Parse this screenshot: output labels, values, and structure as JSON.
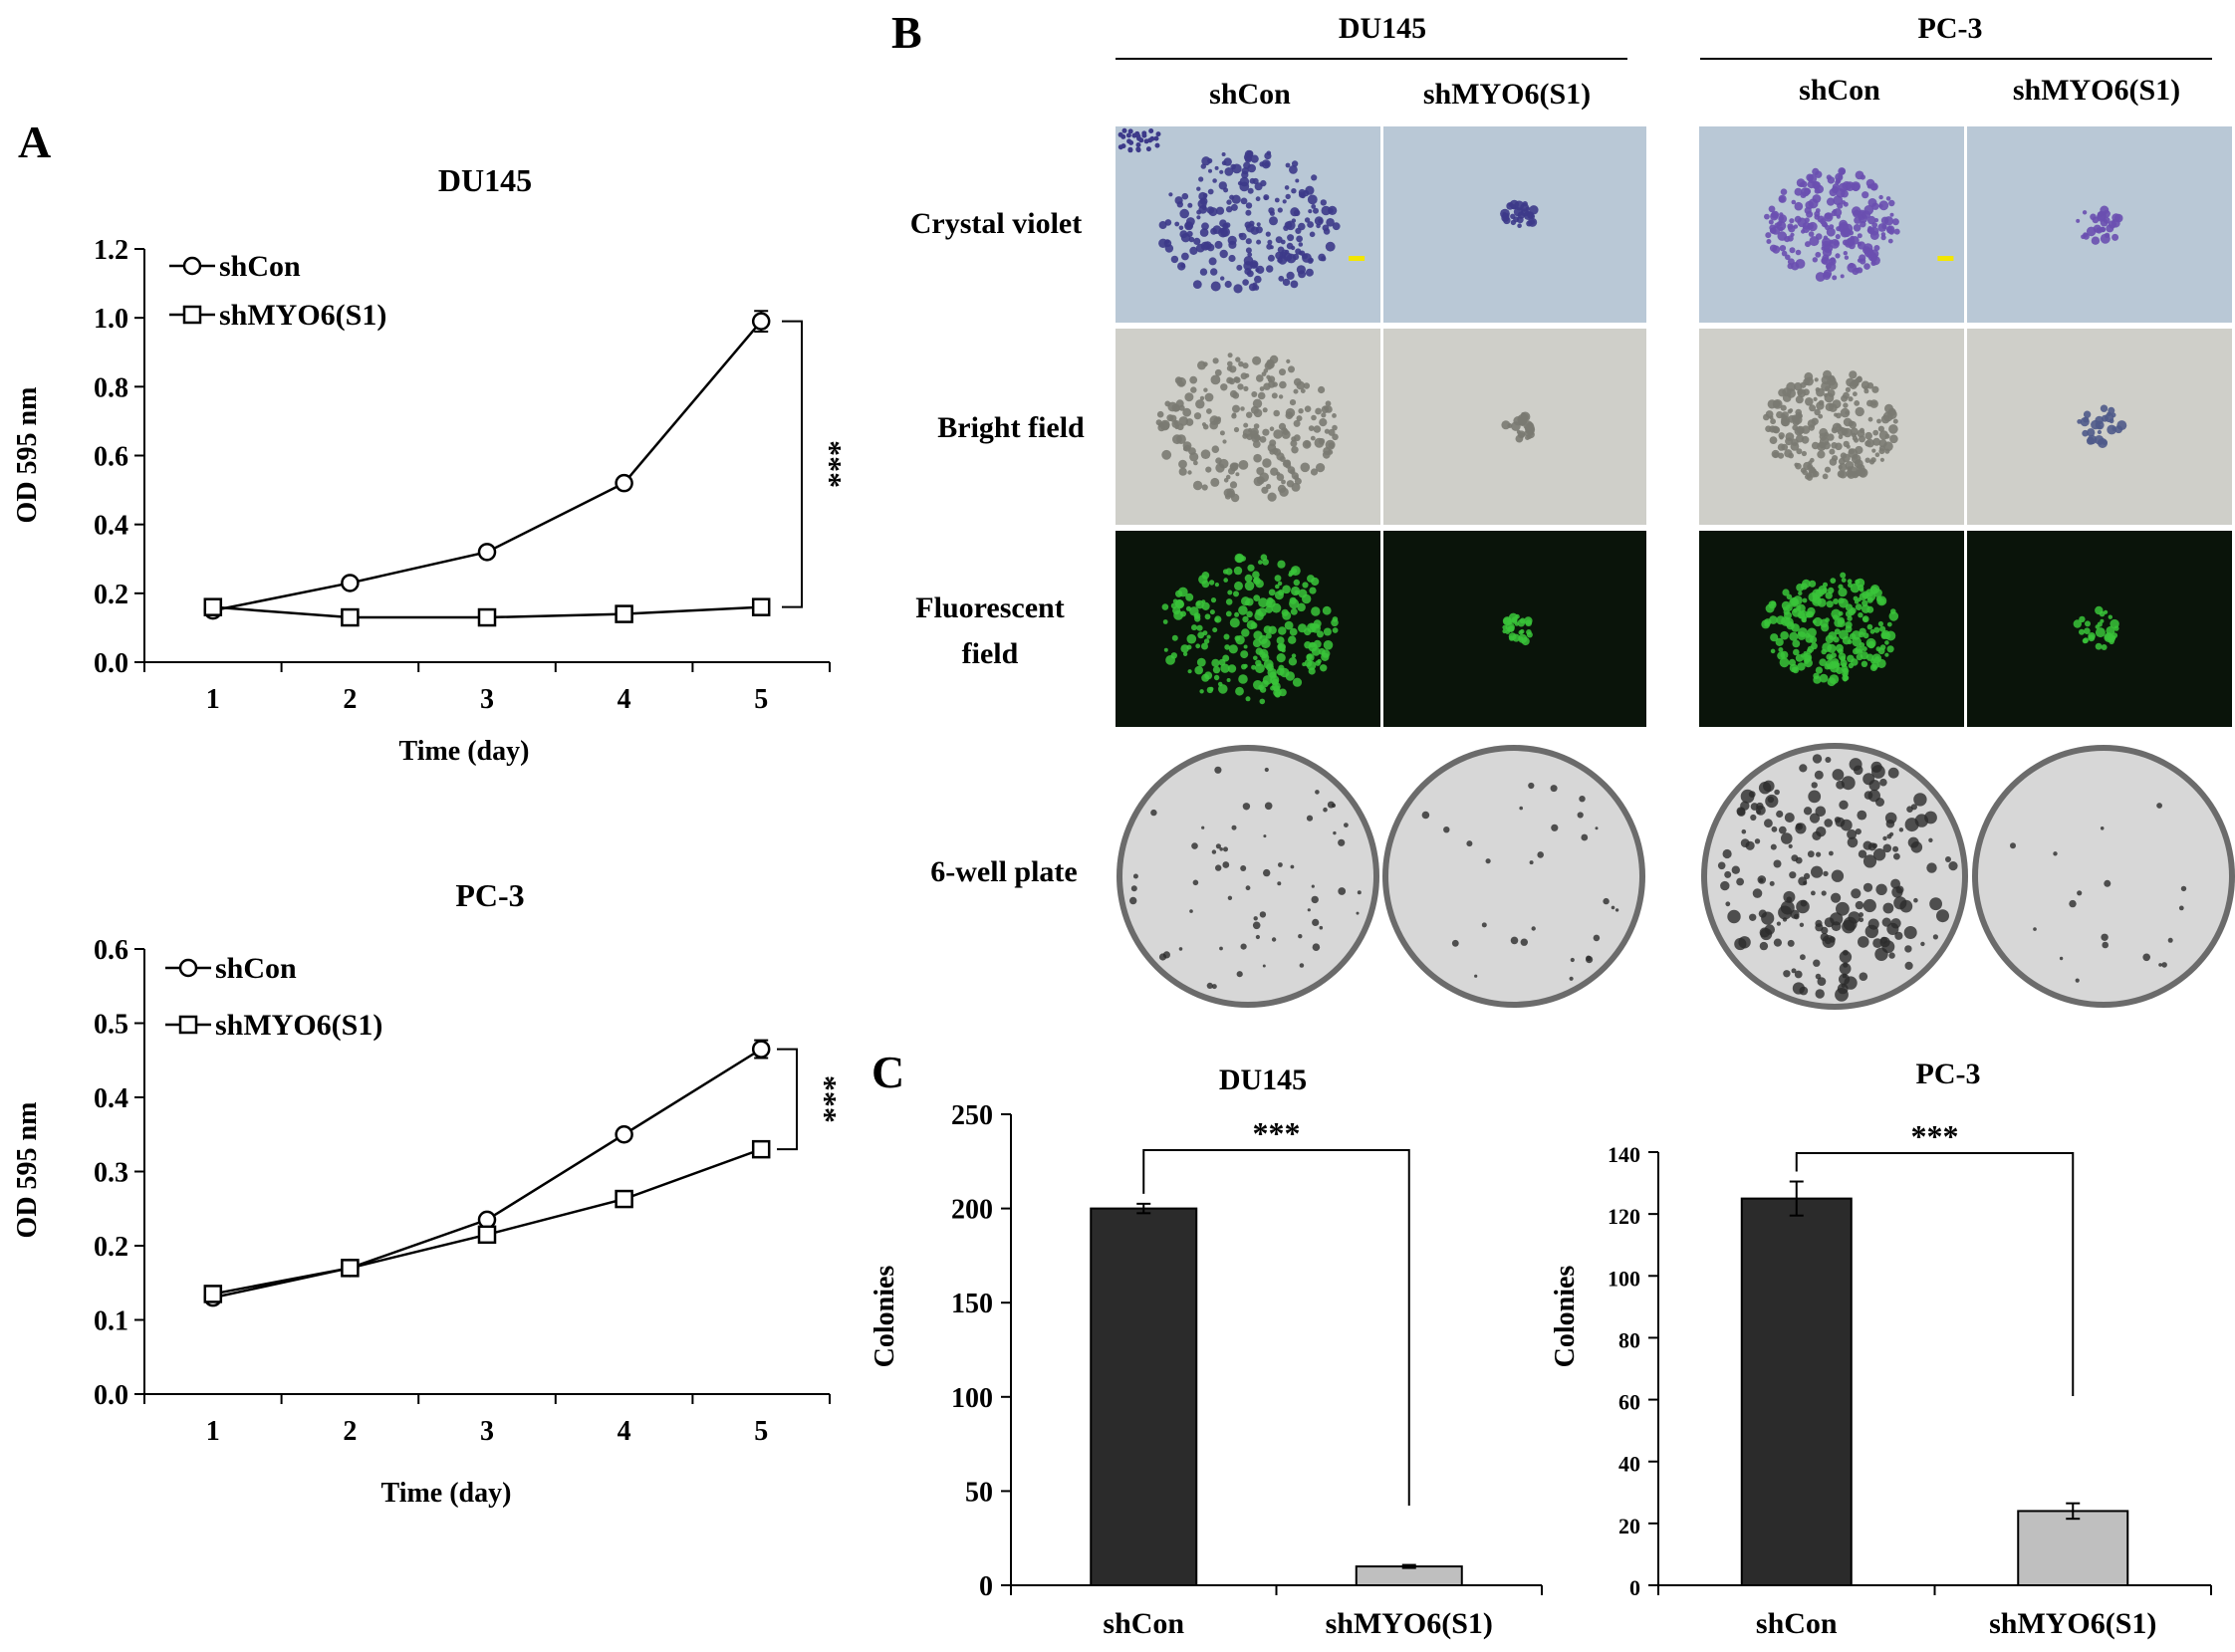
{
  "figure": {
    "panel_letters": [
      "A",
      "B",
      "C"
    ],
    "palette": {
      "axis": "#000000",
      "bar_shcon": "#2b2b2b",
      "bar_shmyo6": "#bfbfbf",
      "crystal_bg": "#b9c8d6",
      "crystal_stain": "#3d3a8a",
      "crystal_stain_pc3": "#6a4fb0",
      "bright_bg": "#cfcfc9",
      "fluor_bg": "#0a140a",
      "fluor_green": "#39c43a",
      "plate_bg": "#d7d7d7",
      "scale_bar": "#f3e600"
    }
  },
  "panelA": {
    "top": {
      "title": "DU145",
      "ylabel": "OD 595 nm",
      "xlabel": "Time (day)",
      "significance": "***"
    },
    "bottom": {
      "title": "PC-3",
      "ylabel": "OD 595 nm",
      "xlabel": "Time (day)",
      "significance": "***"
    }
  },
  "panelB": {
    "groups": [
      {
        "label": "DU145",
        "columns": [
          "shCon",
          "shMYO6(S1)"
        ]
      },
      {
        "label": "PC-3",
        "columns": [
          "shCon",
          "shMYO6(S1)"
        ]
      }
    ],
    "rows": [
      "Crystal violet",
      "Bright field",
      "Fluorescent\nfield",
      "6-well plate"
    ],
    "row_lines": [
      [
        "Crystal violet"
      ],
      [
        "Bright field"
      ],
      [
        "Fluorescent",
        "field"
      ],
      [
        "6-well plate"
      ]
    ],
    "colony_size": {
      "DU145": {
        "shCon": "large",
        "shMYO6(S1)": "small"
      },
      "PC-3": {
        "shCon": "large",
        "shMYO6(S1)": "small"
      }
    }
  },
  "panelC": {
    "left": {
      "title": "DU145",
      "ylabel": "Colonies",
      "significance": "***"
    },
    "right": {
      "title": "PC-3",
      "ylabel": "Colonies",
      "significance": "***"
    }
  },
  "chart_data": [
    {
      "id": "A-DU145",
      "type": "line",
      "title": "DU145",
      "xlabel": "Time (day)",
      "ylabel": "OD 595 nm",
      "x": [
        1,
        2,
        3,
        4,
        5
      ],
      "xlim": [
        0.5,
        5.5
      ],
      "ylim": [
        0,
        1.2
      ],
      "yticks": [
        0.0,
        0.2,
        0.4,
        0.6,
        0.8,
        1.0,
        1.2
      ],
      "ytick_labels": [
        "0.0",
        "0.2",
        "0.4",
        "0.6",
        "0.8",
        "1.0",
        "1.2"
      ],
      "xticks": [
        1,
        2,
        3,
        4,
        5
      ],
      "legend": "top-left",
      "annotation": "***",
      "series": [
        {
          "name": "shCon",
          "marker": "circle",
          "values": [
            0.15,
            0.23,
            0.32,
            0.52,
            0.99
          ],
          "errors": [
            0.0,
            0.0,
            0.0,
            0.0,
            0.03
          ]
        },
        {
          "name": "shMYO6(S1)",
          "marker": "square",
          "values": [
            0.16,
            0.13,
            0.13,
            0.14,
            0.16
          ],
          "errors": [
            0,
            0,
            0,
            0,
            0
          ]
        }
      ]
    },
    {
      "id": "A-PC3",
      "type": "line",
      "title": "PC-3",
      "xlabel": "Time (day)",
      "ylabel": "OD 595 nm",
      "x": [
        1,
        2,
        3,
        4,
        5
      ],
      "xlim": [
        0.5,
        5.5
      ],
      "ylim": [
        0,
        0.6
      ],
      "yticks": [
        0.0,
        0.1,
        0.2,
        0.3,
        0.4,
        0.5,
        0.6
      ],
      "ytick_labels": [
        "0.0",
        "0.1",
        "0.2",
        "0.3",
        "0.4",
        "0.5",
        "0.6"
      ],
      "xticks": [
        1,
        2,
        3,
        4,
        5
      ],
      "legend": "top-left",
      "annotation": "***",
      "series": [
        {
          "name": "shCon",
          "marker": "circle",
          "values": [
            0.13,
            0.17,
            0.235,
            0.35,
            0.465
          ],
          "errors": [
            0,
            0,
            0,
            0,
            0.012
          ]
        },
        {
          "name": "shMYO6(S1)",
          "marker": "square",
          "values": [
            0.135,
            0.17,
            0.215,
            0.263,
            0.33
          ],
          "errors": [
            0,
            0,
            0,
            0,
            0
          ]
        }
      ]
    },
    {
      "id": "C-DU145",
      "type": "bar",
      "title": "DU145",
      "ylabel": "Colonies",
      "categories": [
        "shCon",
        "shMYO6(S1)"
      ],
      "values": [
        200,
        10
      ],
      "errors": [
        2.5,
        0.8
      ],
      "ylim": [
        0,
        250
      ],
      "yticks": [
        0,
        50,
        100,
        150,
        200,
        250
      ],
      "ytick_labels": [
        "0",
        "50",
        "100",
        "150",
        "200",
        "250"
      ],
      "annotation": "***"
    },
    {
      "id": "C-PC3",
      "type": "bar",
      "title": "PC-3",
      "ylabel": "Colonies",
      "categories": [
        "shCon",
        "shMYO6(S1)"
      ],
      "values": [
        125,
        24
      ],
      "errors": [
        5.5,
        2.5
      ],
      "ylim": [
        0,
        140
      ],
      "yticks": [
        0,
        20,
        40,
        60,
        80,
        100,
        120,
        140
      ],
      "ytick_labels": [
        "0",
        "20",
        "40",
        "60",
        "80",
        "100",
        "120",
        "140"
      ],
      "annotation": "***"
    }
  ]
}
